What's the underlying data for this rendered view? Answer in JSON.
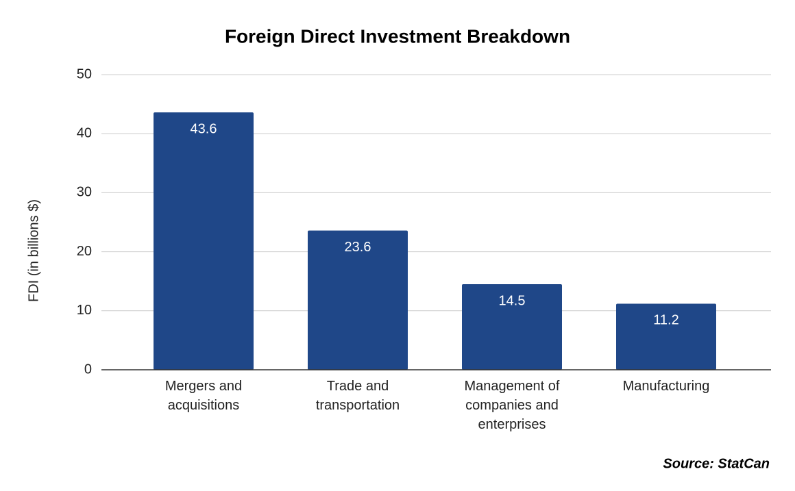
{
  "chart_data": {
    "type": "bar",
    "title": "Foreign Direct Investment Breakdown",
    "y_label": "FDI (in billions $)",
    "categories": [
      "Mergers and acquisitions",
      "Trade and transportation",
      "Management of companies and enterprises",
      "Manufacturing"
    ],
    "values": [
      43.6,
      23.6,
      14.5,
      11.2
    ],
    "color": "#1f4788",
    "ylim": [
      0,
      50
    ],
    "yticks": [
      0,
      10,
      20,
      30,
      40,
      50
    ],
    "grid": true,
    "source": "Source: StatCan"
  }
}
